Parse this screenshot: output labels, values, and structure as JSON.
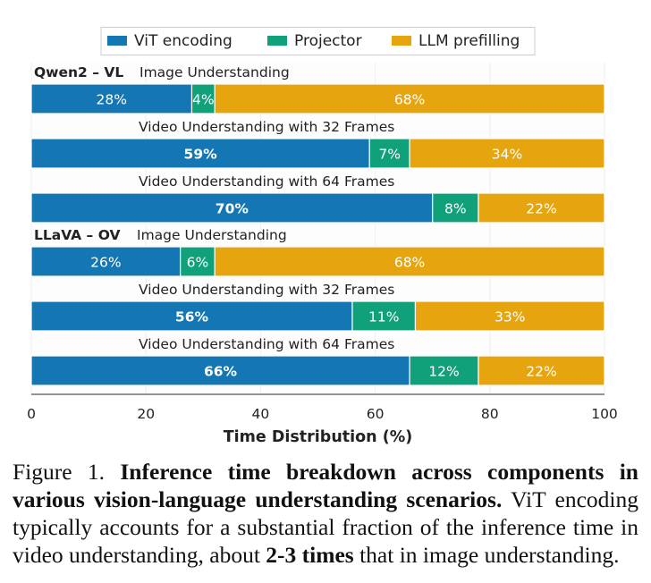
{
  "chart_data": {
    "type": "bar",
    "orientation": "horizontal-stacked",
    "title": "",
    "xlabel": "Time Distribution (%)",
    "ylabel": "",
    "xlim": [
      0,
      100
    ],
    "xticks": [
      0,
      20,
      40,
      60,
      80,
      100
    ],
    "grid": true,
    "legend": {
      "placement": "top-center",
      "entries": [
        {
          "name": "ViT encoding",
          "color": "#1477b4"
        },
        {
          "name": "Projector",
          "color": "#10a17a"
        },
        {
          "name": "LLM prefilling",
          "color": "#e6a50f"
        }
      ]
    },
    "groups": [
      {
        "model": "Qwen2 – VL",
        "bars": [
          0,
          1,
          2
        ]
      },
      {
        "model": "LLaVA – OV",
        "bars": [
          3,
          4,
          5
        ]
      }
    ],
    "categories": [
      "Image Understanding",
      "Video Understanding with 32 Frames",
      "Video Understanding with 64 Frames",
      "Image Understanding",
      "Video Understanding with 32 Frames",
      "Video Understanding with 64 Frames"
    ],
    "series": [
      {
        "name": "ViT encoding",
        "values": [
          28,
          59,
          70,
          26,
          56,
          66
        ],
        "bold_labels": [
          false,
          true,
          true,
          false,
          true,
          true
        ]
      },
      {
        "name": "Projector",
        "values": [
          4,
          7,
          8,
          6,
          11,
          12
        ]
      },
      {
        "name": "LLM prefilling",
        "values": [
          68,
          34,
          22,
          68,
          33,
          22
        ]
      }
    ],
    "value_label_suffix": "%"
  },
  "caption": {
    "prefix": "Figure 1.",
    "bold_title": "Inference time breakdown across components in various vision-language understanding scenarios.",
    "body_1": "ViT encoding typically accounts for a substantial fraction of the inference time in video understanding, about",
    "bold_emphasis": "2-3 times",
    "body_2": "that in image understanding."
  }
}
